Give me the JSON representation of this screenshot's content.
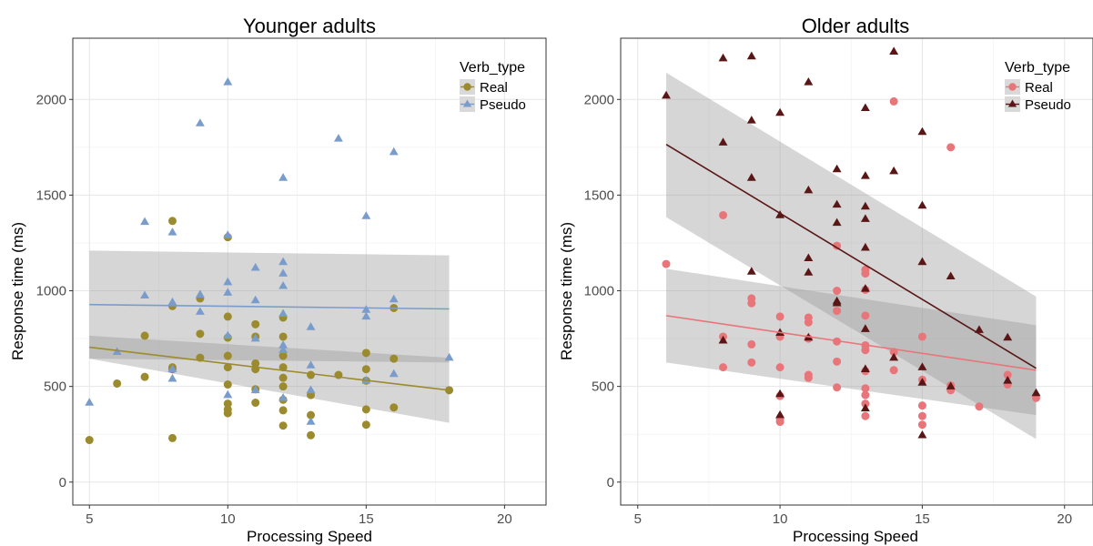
{
  "chart_data": [
    {
      "type": "scatter",
      "title": "Younger adults",
      "xlabel": "Processing Speed",
      "ylabel": "Response time (ms)",
      "xlim": [
        4.4,
        21.5
      ],
      "ylim": [
        -120,
        2320
      ],
      "xticks": [
        5,
        10,
        15,
        20
      ],
      "yticks": [
        0,
        500,
        1000,
        1500,
        2000
      ],
      "grid": true,
      "legend_title": "Verb_type",
      "legend_position": "top-right",
      "series": [
        {
          "name": "Real",
          "marker": "circle",
          "color": "#9c8b2e",
          "fit": {
            "x": [
              5,
              18
            ],
            "y": [
              705,
              480
            ],
            "band_lower": [
              645,
              310
            ],
            "band_upper": [
              765,
              650
            ]
          },
          "points": [
            [
              5,
              220
            ],
            [
              6,
              515
            ],
            [
              7,
              550
            ],
            [
              7,
              765
            ],
            [
              8,
              230
            ],
            [
              8,
              1365
            ],
            [
              8,
              920
            ],
            [
              8,
              600
            ],
            [
              8,
              590
            ],
            [
              9,
              960
            ],
            [
              9,
              775
            ],
            [
              9,
              650
            ],
            [
              10,
              1280
            ],
            [
              10,
              865
            ],
            [
              10,
              755
            ],
            [
              10,
              660
            ],
            [
              10,
              600
            ],
            [
              10,
              510
            ],
            [
              10,
              410
            ],
            [
              10,
              380
            ],
            [
              10,
              360
            ],
            [
              11,
              825
            ],
            [
              11,
              760
            ],
            [
              11,
              620
            ],
            [
              11,
              590
            ],
            [
              11,
              485
            ],
            [
              11,
              415
            ],
            [
              12,
              860
            ],
            [
              12,
              760
            ],
            [
              12,
              660
            ],
            [
              12,
              600
            ],
            [
              12,
              545
            ],
            [
              12,
              500
            ],
            [
              12,
              430
            ],
            [
              12,
              375
            ],
            [
              12,
              295
            ],
            [
              13,
              560
            ],
            [
              13,
              455
            ],
            [
              13,
              350
            ],
            [
              13,
              245
            ],
            [
              14,
              560
            ],
            [
              15,
              675
            ],
            [
              15,
              590
            ],
            [
              15,
              530
            ],
            [
              15,
              380
            ],
            [
              15,
              300
            ],
            [
              16,
              910
            ],
            [
              16,
              645
            ],
            [
              16,
              390
            ],
            [
              18,
              480
            ]
          ]
        },
        {
          "name": "Pseudo",
          "marker": "triangle",
          "color": "#7a9ccb",
          "fit": {
            "x": [
              5,
              18
            ],
            "y": [
              928,
              905
            ],
            "band_lower": [
              645,
              625
            ],
            "band_upper": [
              1210,
              1185
            ]
          },
          "points": [
            [
              5,
              415
            ],
            [
              6,
              680
            ],
            [
              7,
              1360
            ],
            [
              7,
              975
            ],
            [
              8,
              1305
            ],
            [
              8,
              940
            ],
            [
              8,
              590
            ],
            [
              8,
              540
            ],
            [
              9,
              1875
            ],
            [
              9,
              980
            ],
            [
              9,
              890
            ],
            [
              10,
              2090
            ],
            [
              10,
              1290
            ],
            [
              10,
              1045
            ],
            [
              10,
              990
            ],
            [
              10,
              765
            ],
            [
              10,
              455
            ],
            [
              11,
              1120
            ],
            [
              11,
              950
            ],
            [
              11,
              750
            ],
            [
              11,
              480
            ],
            [
              12,
              1590
            ],
            [
              12,
              1150
            ],
            [
              12,
              1090
            ],
            [
              12,
              1025
            ],
            [
              12,
              880
            ],
            [
              12,
              715
            ],
            [
              12,
              690
            ],
            [
              12,
              440
            ],
            [
              13,
              810
            ],
            [
              13,
              610
            ],
            [
              13,
              480
            ],
            [
              13,
              315
            ],
            [
              14,
              1795
            ],
            [
              15,
              1390
            ],
            [
              15,
              900
            ],
            [
              15,
              865
            ],
            [
              15,
              530
            ],
            [
              16,
              1725
            ],
            [
              16,
              955
            ],
            [
              16,
              565
            ],
            [
              18,
              650
            ]
          ]
        }
      ]
    },
    {
      "type": "scatter",
      "title": "Older adults",
      "xlabel": "Processing Speed",
      "ylabel": "Response time (ms)",
      "xlim": [
        4.4,
        21.0
      ],
      "ylim": [
        -120,
        2320
      ],
      "xticks": [
        5,
        10,
        15,
        20
      ],
      "yticks": [
        0,
        500,
        1000,
        1500,
        2000
      ],
      "grid": true,
      "legend_title": "Verb_type",
      "legend_position": "top-right",
      "series": [
        {
          "name": "Real",
          "marker": "circle",
          "color": "#e8757a",
          "fit": {
            "x": [
              6,
              19
            ],
            "y": [
              870,
              585
            ],
            "band_lower": [
              625,
              350
            ],
            "band_upper": [
              1115,
              820
            ]
          },
          "points": [
            [
              6,
              1140
            ],
            [
              8,
              1395
            ],
            [
              8,
              760
            ],
            [
              8,
              600
            ],
            [
              9,
              960
            ],
            [
              9,
              935
            ],
            [
              9,
              720
            ],
            [
              9,
              625
            ],
            [
              10,
              865
            ],
            [
              10,
              760
            ],
            [
              10,
              600
            ],
            [
              10,
              450
            ],
            [
              10,
              330
            ],
            [
              10,
              315
            ],
            [
              11,
              860
            ],
            [
              11,
              835
            ],
            [
              11,
              750
            ],
            [
              11,
              560
            ],
            [
              11,
              545
            ],
            [
              12,
              1235
            ],
            [
              12,
              1000
            ],
            [
              12,
              895
            ],
            [
              12,
              735
            ],
            [
              12,
              630
            ],
            [
              12,
              495
            ],
            [
              13,
              1110
            ],
            [
              13,
              1090
            ],
            [
              13,
              1005
            ],
            [
              13,
              870
            ],
            [
              13,
              715
            ],
            [
              13,
              690
            ],
            [
              13,
              580
            ],
            [
              13,
              490
            ],
            [
              13,
              455
            ],
            [
              13,
              410
            ],
            [
              13,
              345
            ],
            [
              14,
              1990
            ],
            [
              14,
              680
            ],
            [
              14,
              585
            ],
            [
              15,
              760
            ],
            [
              15,
              535
            ],
            [
              15,
              400
            ],
            [
              15,
              345
            ],
            [
              15,
              300
            ],
            [
              16,
              1750
            ],
            [
              16,
              505
            ],
            [
              16,
              480
            ],
            [
              17,
              395
            ],
            [
              18,
              560
            ],
            [
              18,
              510
            ],
            [
              19,
              440
            ]
          ]
        },
        {
          "name": "Pseudo",
          "marker": "triangle",
          "color": "#5a1616",
          "fit": {
            "x": [
              6,
              19
            ],
            "y": [
              1765,
              595
            ],
            "band_lower": [
              1385,
              225
            ],
            "band_upper": [
              2140,
              970
            ]
          },
          "points": [
            [
              6,
              2020
            ],
            [
              8,
              2215
            ],
            [
              8,
              1775
            ],
            [
              8,
              740
            ],
            [
              9,
              2225
            ],
            [
              9,
              1890
            ],
            [
              9,
              1590
            ],
            [
              9,
              1100
            ],
            [
              10,
              1930
            ],
            [
              10,
              1395
            ],
            [
              10,
              780
            ],
            [
              10,
              460
            ],
            [
              10,
              350
            ],
            [
              11,
              2090
            ],
            [
              11,
              1525
            ],
            [
              11,
              1170
            ],
            [
              11,
              1095
            ],
            [
              11,
              755
            ],
            [
              12,
              1635
            ],
            [
              12,
              1450
            ],
            [
              12,
              1355
            ],
            [
              12,
              945
            ],
            [
              12,
              935
            ],
            [
              13,
              1955
            ],
            [
              13,
              1600
            ],
            [
              13,
              1440
            ],
            [
              13,
              1375
            ],
            [
              13,
              1225
            ],
            [
              13,
              1010
            ],
            [
              13,
              800
            ],
            [
              13,
              590
            ],
            [
              13,
              385
            ],
            [
              14,
              2250
            ],
            [
              14,
              1625
            ],
            [
              14,
              650
            ],
            [
              15,
              1830
            ],
            [
              15,
              1445
            ],
            [
              15,
              1150
            ],
            [
              15,
              600
            ],
            [
              15,
              520
            ],
            [
              15,
              245
            ],
            [
              16,
              1075
            ],
            [
              16,
              500
            ],
            [
              17,
              795
            ],
            [
              18,
              755
            ],
            [
              18,
              530
            ],
            [
              19,
              465
            ]
          ]
        }
      ]
    }
  ]
}
